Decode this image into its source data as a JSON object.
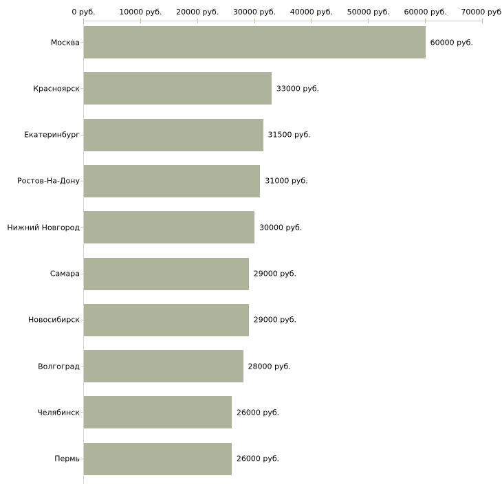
{
  "chart_data": {
    "type": "bar",
    "orientation": "horizontal",
    "title": "",
    "xlabel": "",
    "ylabel": "",
    "categories": [
      "Москва",
      "Красноярск",
      "Екатеринбург",
      "Ростов-На-Дону",
      "Нижний Новгород",
      "Самара",
      "Новосибирск",
      "Волгоград",
      "Челябинск",
      "Пермь"
    ],
    "values": [
      60000,
      33000,
      31500,
      31000,
      30000,
      29000,
      29000,
      28000,
      26000,
      26000
    ],
    "value_labels": [
      "60000 руб.",
      "33000 руб.",
      "31500 руб.",
      "31000 руб.",
      "30000 руб.",
      "29000 руб.",
      "29000 руб.",
      "28000 руб.",
      "26000 руб.",
      "26000 руб."
    ],
    "x_ticks": [
      0,
      10000,
      20000,
      30000,
      40000,
      50000,
      60000,
      70000
    ],
    "x_tick_labels": [
      "0 руб.",
      "10000 руб.",
      "20000 руб.",
      "30000 руб.",
      "40000 руб.",
      "50000 руб.",
      "60000 руб.",
      "70000 руб."
    ],
    "xlim": [
      0,
      70000
    ],
    "grid": false,
    "legend": false,
    "axis_position": "top-left",
    "colors": {
      "bar": "#aeb39c",
      "axis_line": "#c9c9c9",
      "tick_mark": "#c3c49c",
      "text": "#000000",
      "background": "#ffffff"
    }
  }
}
